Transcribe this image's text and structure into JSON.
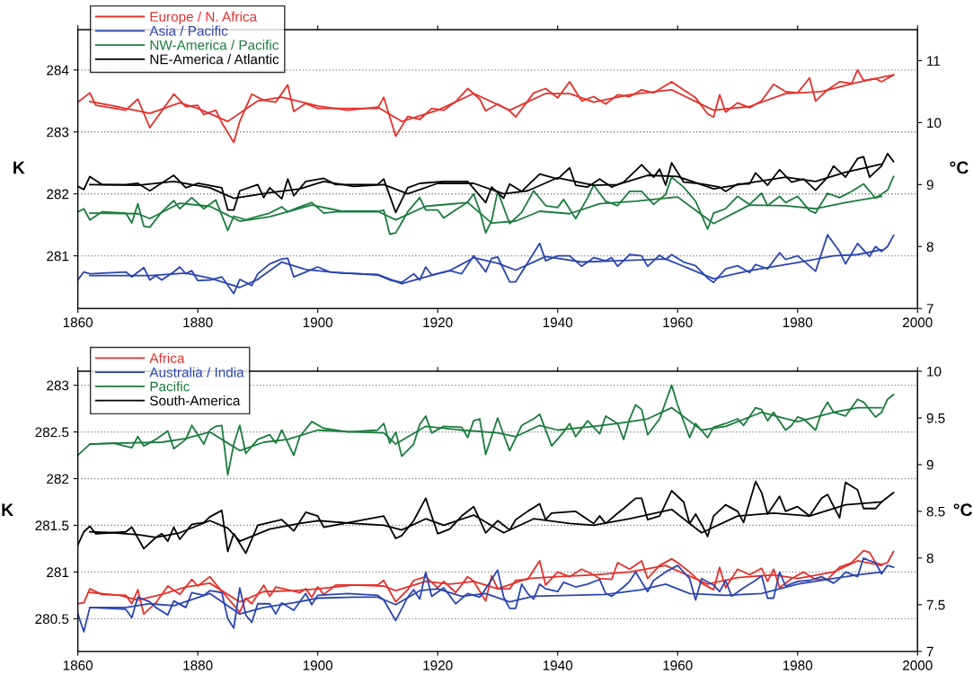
{
  "chart_data": [
    {
      "type": "line",
      "ylabel": "K",
      "y2label": "°C",
      "xlim": [
        1860,
        2000
      ],
      "xticks": [
        1860,
        1880,
        1900,
        1920,
        1940,
        1960,
        1980,
        2000
      ],
      "ylim": [
        280.15,
        284.65
      ],
      "yticks": [
        281,
        282,
        283,
        284
      ],
      "y2lim": [
        7,
        11.5
      ],
      "y2ticks": [
        7,
        8,
        9,
        10,
        11
      ],
      "grid": "y",
      "legend": "top left",
      "line_style": "solid",
      "series": [
        {
          "name": "Europe / N. Africa",
          "color": "#e3312b",
          "x": [
            1860,
            1862,
            1863,
            1868,
            1870,
            1872,
            1876,
            1878,
            1880,
            1881,
            1883,
            1884,
            1886,
            1887,
            1889,
            1891,
            1893,
            1895,
            1896,
            1898,
            1900,
            1910,
            1911,
            1913,
            1915,
            1917,
            1919,
            1921,
            1923,
            1925,
            1927,
            1928,
            1930,
            1932,
            1933,
            1936,
            1938,
            1940,
            1942,
            1944,
            1946,
            1948,
            1950,
            1952,
            1954,
            1956,
            1959,
            1961,
            1963,
            1965,
            1966,
            1967,
            1968,
            1970,
            1972,
            1974,
            1976,
            1978,
            1980,
            1982,
            1983,
            1985,
            1987,
            1989,
            1990,
            1991,
            1993,
            1994,
            1996
          ],
          "values": [
            283.48,
            283.63,
            283.43,
            283.35,
            283.53,
            283.07,
            283.61,
            283.41,
            283.43,
            283.28,
            283.35,
            283.15,
            282.83,
            283.17,
            283.61,
            283.51,
            283.48,
            283.76,
            283.33,
            283.46,
            283.38,
            283.38,
            283.56,
            282.93,
            283.25,
            283.2,
            283.38,
            283.35,
            283.49,
            283.7,
            283.53,
            283.34,
            283.45,
            283.34,
            283.24,
            283.63,
            283.7,
            283.55,
            283.81,
            283.5,
            283.57,
            283.45,
            283.6,
            283.57,
            283.68,
            283.63,
            283.81,
            283.68,
            283.55,
            283.29,
            283.24,
            283.6,
            283.32,
            283.47,
            283.39,
            283.5,
            283.77,
            283.65,
            283.63,
            283.87,
            283.5,
            283.68,
            283.81,
            283.78,
            284.0,
            283.83,
            283.86,
            283.81,
            283.92
          ]
        },
        {
          "color": "#e3312b",
          "x": [
            1862,
            1866,
            1872,
            1877,
            1880,
            1885,
            1890,
            1894,
            1900,
            1905,
            1910,
            1914,
            1920,
            1926,
            1932,
            1938,
            1942,
            1946,
            1952,
            1959,
            1966,
            1972,
            1978,
            1984,
            1990,
            1996
          ],
          "values": [
            283.49,
            283.42,
            283.3,
            283.47,
            283.38,
            283.17,
            283.5,
            283.56,
            283.42,
            283.35,
            283.4,
            283.17,
            283.35,
            283.62,
            283.35,
            283.62,
            283.62,
            283.48,
            283.6,
            283.68,
            283.35,
            283.41,
            283.62,
            283.65,
            283.8,
            283.92
          ]
        },
        {
          "name": "Asia / Pacific",
          "color": "#2c45b0",
          "x": [
            1860,
            1861,
            1862,
            1868,
            1869,
            1871,
            1872,
            1873,
            1874,
            1876,
            1877,
            1878,
            1879,
            1880,
            1882,
            1884,
            1886,
            1887,
            1889,
            1890,
            1892,
            1894,
            1895,
            1896,
            1898,
            1900,
            1902,
            1910,
            1912,
            1914,
            1916,
            1917,
            1918,
            1919,
            1922,
            1924,
            1926,
            1928,
            1929,
            1930,
            1932,
            1933,
            1935,
            1937,
            1938,
            1940,
            1942,
            1944,
            1946,
            1948,
            1949,
            1950,
            1952,
            1954,
            1955,
            1957,
            1958,
            1959,
            1961,
            1963,
            1965,
            1966,
            1968,
            1970,
            1972,
            1973,
            1975,
            1977,
            1978,
            1980,
            1981,
            1983,
            1985,
            1987,
            1988,
            1990,
            1992,
            1993,
            1994,
            1995,
            1996
          ],
          "values": [
            280.61,
            280.74,
            280.71,
            280.74,
            280.66,
            280.81,
            280.61,
            280.68,
            280.61,
            280.74,
            280.82,
            280.71,
            280.76,
            280.6,
            280.61,
            280.66,
            280.39,
            280.62,
            280.52,
            280.71,
            280.87,
            280.95,
            280.96,
            280.66,
            280.74,
            280.82,
            280.74,
            280.69,
            280.61,
            280.57,
            280.71,
            280.61,
            280.82,
            280.69,
            280.76,
            280.71,
            281.0,
            280.74,
            280.96,
            280.98,
            280.58,
            280.58,
            280.89,
            281.2,
            280.92,
            281.0,
            281.0,
            280.83,
            280.97,
            280.92,
            280.97,
            280.83,
            281.02,
            281.0,
            280.83,
            281.01,
            280.94,
            281.02,
            280.9,
            280.84,
            280.64,
            280.57,
            280.79,
            280.84,
            280.73,
            280.86,
            280.79,
            281.05,
            280.94,
            281.0,
            280.92,
            280.75,
            281.34,
            281.07,
            280.87,
            281.2,
            280.99,
            281.15,
            281.07,
            281.15,
            281.33
          ]
        },
        {
          "color": "#2c45b0",
          "x": [
            1862,
            1872,
            1878,
            1882,
            1887,
            1890,
            1894,
            1898,
            1904,
            1910,
            1914,
            1918,
            1922,
            1926,
            1930,
            1933,
            1938,
            1944,
            1950,
            1958,
            1966,
            1972,
            1980,
            1986,
            1990,
            1994
          ],
          "values": [
            280.68,
            280.68,
            280.72,
            280.64,
            280.49,
            280.62,
            280.9,
            280.78,
            280.72,
            280.7,
            280.55,
            280.66,
            280.76,
            280.97,
            280.88,
            280.77,
            280.99,
            280.9,
            280.92,
            280.95,
            280.63,
            280.76,
            280.89,
            281.0,
            281.02,
            281.1
          ]
        },
        {
          "name": "NW-America / Pacific",
          "color": "#1b7c3d",
          "x": [
            1860,
            1861,
            1862,
            1864,
            1868,
            1869,
            1870,
            1871,
            1872,
            1874,
            1876,
            1877,
            1879,
            1881,
            1883,
            1885,
            1886,
            1888,
            1890,
            1892,
            1894,
            1895,
            1897,
            1899,
            1901,
            1903,
            1910,
            1911,
            1912,
            1913,
            1915,
            1917,
            1918,
            1920,
            1921,
            1923,
            1925,
            1926,
            1927,
            1928,
            1929,
            1930,
            1932,
            1934,
            1936,
            1938,
            1940,
            1941,
            1943,
            1945,
            1946,
            1948,
            1950,
            1952,
            1954,
            1956,
            1958,
            1959,
            1961,
            1963,
            1965,
            1966,
            1968,
            1970,
            1972,
            1974,
            1975,
            1977,
            1978,
            1980,
            1982,
            1983,
            1985,
            1987,
            1989,
            1991,
            1993,
            1995,
            1996
          ],
          "values": [
            281.71,
            281.76,
            281.58,
            281.71,
            281.69,
            281.53,
            281.84,
            281.48,
            281.46,
            281.71,
            281.89,
            281.76,
            281.94,
            281.76,
            281.9,
            281.41,
            281.64,
            281.58,
            281.64,
            281.69,
            281.79,
            281.71,
            281.79,
            281.86,
            281.69,
            281.71,
            281.71,
            281.74,
            281.35,
            281.37,
            281.71,
            281.94,
            281.74,
            281.74,
            281.61,
            281.74,
            281.87,
            282.0,
            281.73,
            281.37,
            281.57,
            282.04,
            281.52,
            281.7,
            282.05,
            281.81,
            281.78,
            281.91,
            281.6,
            281.94,
            282.14,
            281.88,
            281.81,
            282.04,
            282.04,
            281.83,
            281.99,
            282.27,
            282.11,
            281.88,
            281.43,
            281.69,
            281.76,
            281.96,
            281.83,
            282.01,
            281.81,
            281.96,
            281.86,
            281.96,
            281.73,
            281.69,
            282.01,
            281.94,
            282.04,
            282.16,
            281.93,
            282.06,
            282.28
          ]
        },
        {
          "color": "#1b7c3d",
          "x": [
            1862,
            1870,
            1872,
            1877,
            1882,
            1887,
            1892,
            1899,
            1904,
            1910,
            1913,
            1918,
            1925,
            1929,
            1933,
            1937,
            1942,
            1947,
            1953,
            1960,
            1966,
            1972,
            1978,
            1983,
            1988,
            1994
          ],
          "values": [
            281.69,
            281.68,
            281.6,
            281.85,
            281.8,
            281.56,
            281.63,
            281.82,
            281.72,
            281.72,
            281.58,
            281.8,
            281.86,
            281.53,
            281.56,
            281.72,
            281.68,
            281.84,
            281.88,
            281.95,
            281.52,
            281.82,
            281.81,
            281.76,
            281.86,
            281.96
          ]
        },
        {
          "name": "NE-America / Atlantic",
          "color": "#000000",
          "x": [
            1860,
            1861,
            1862,
            1864,
            1868,
            1870,
            1872,
            1876,
            1878,
            1880,
            1884,
            1885,
            1886,
            1887,
            1890,
            1891,
            1892,
            1894,
            1895,
            1896,
            1898,
            1901,
            1903,
            1910,
            1911,
            1913,
            1915,
            1917,
            1921,
            1925,
            1928,
            1929,
            1931,
            1932,
            1934,
            1937,
            1940,
            1942,
            1943,
            1945,
            1947,
            1949,
            1951,
            1954,
            1956,
            1957,
            1958,
            1959,
            1961,
            1964,
            1967,
            1968,
            1970,
            1972,
            1973,
            1975,
            1977,
            1979,
            1981,
            1983,
            1985,
            1986,
            1988,
            1990,
            1991,
            1992,
            1994,
            1995,
            1996
          ],
          "values": [
            282.12,
            282.07,
            282.28,
            282.15,
            282.15,
            282.17,
            282.05,
            282.3,
            282.1,
            282.17,
            282.1,
            281.74,
            281.74,
            282.05,
            282.15,
            281.94,
            282.1,
            281.92,
            282.24,
            281.97,
            282.2,
            282.25,
            282.15,
            282.15,
            282.24,
            281.7,
            282.1,
            282.17,
            282.2,
            282.2,
            281.86,
            282.11,
            281.93,
            282.16,
            282.04,
            282.32,
            282.24,
            282.42,
            282.14,
            282.11,
            282.24,
            282.11,
            282.19,
            282.47,
            282.27,
            282.4,
            282.14,
            282.5,
            282.19,
            282.16,
            282.11,
            282.04,
            282.16,
            282.16,
            282.34,
            282.14,
            282.39,
            282.19,
            282.24,
            282.06,
            282.27,
            282.45,
            282.27,
            282.57,
            282.6,
            282.27,
            282.45,
            282.65,
            282.52
          ]
        },
        {
          "color": "#000000",
          "x": [
            1862,
            1870,
            1876,
            1882,
            1886,
            1892,
            1897,
            1901,
            1906,
            1911,
            1915,
            1920,
            1926,
            1931,
            1935,
            1940,
            1946,
            1950,
            1955,
            1960,
            1966,
            1972,
            1978,
            1983,
            1988,
            1994
          ],
          "values": [
            282.15,
            282.14,
            282.2,
            282.1,
            281.93,
            282.02,
            282.08,
            282.2,
            282.12,
            282.15,
            282.0,
            282.17,
            282.17,
            282.0,
            282.05,
            282.26,
            282.14,
            282.15,
            282.3,
            282.28,
            282.08,
            282.18,
            282.27,
            282.2,
            282.35,
            282.48
          ]
        }
      ]
    },
    {
      "type": "line",
      "ylabel": "K",
      "y2label": "°C",
      "xlim": [
        1860,
        2000
      ],
      "xticks": [
        1860,
        1880,
        1900,
        1920,
        1940,
        1960,
        1980,
        2000
      ],
      "ylim": [
        280.15,
        283.15
      ],
      "yticks": [
        280.5,
        281,
        281.5,
        282,
        282.5,
        283
      ],
      "y2lim": [
        7,
        10
      ],
      "y2ticks": [
        7,
        7.5,
        8,
        8.5,
        9,
        9.5,
        10
      ],
      "grid": "y",
      "legend": "top left",
      "line_style": "solid",
      "series": [
        {
          "name": "Africa",
          "color": "#e3312b",
          "x": [
            1860,
            1861,
            1862,
            1864,
            1868,
            1869,
            1870,
            1871,
            1873,
            1875,
            1877,
            1879,
            1880,
            1882,
            1883,
            1885,
            1887,
            1888,
            1889,
            1891,
            1892,
            1893,
            1895,
            1897,
            1898,
            1899,
            1900,
            1901,
            1903,
            1910,
            1911,
            1913,
            1915,
            1916,
            1918,
            1920,
            1921,
            1923,
            1925,
            1926,
            1928,
            1929,
            1930,
            1932,
            1933,
            1935,
            1937,
            1938,
            1940,
            1942,
            1944,
            1946,
            1947,
            1949,
            1950,
            1952,
            1954,
            1955,
            1957,
            1959,
            1960,
            1962,
            1964,
            1966,
            1967,
            1968,
            1970,
            1972,
            1974,
            1975,
            1976,
            1977,
            1979,
            1981,
            1983,
            1985,
            1987,
            1989,
            1991,
            1992,
            1993,
            1994,
            1995,
            1996
          ],
          "values": [
            280.66,
            280.67,
            280.82,
            280.76,
            280.75,
            280.66,
            280.81,
            280.55,
            280.67,
            280.85,
            280.76,
            280.92,
            280.85,
            280.95,
            280.87,
            280.72,
            280.57,
            280.72,
            280.66,
            280.86,
            280.74,
            280.84,
            280.81,
            280.78,
            280.82,
            280.73,
            280.84,
            280.76,
            280.86,
            280.86,
            280.91,
            280.68,
            280.81,
            280.91,
            280.95,
            280.83,
            280.9,
            280.78,
            280.95,
            280.9,
            280.69,
            280.96,
            280.82,
            280.82,
            280.91,
            280.92,
            281.12,
            280.86,
            281.0,
            280.95,
            281.03,
            280.97,
            280.93,
            280.92,
            281.1,
            281.03,
            281.12,
            280.93,
            281.07,
            281.14,
            281.1,
            281.0,
            280.88,
            280.81,
            281.05,
            280.83,
            281.03,
            280.97,
            281.04,
            280.9,
            281.03,
            280.83,
            280.93,
            281.0,
            280.92,
            280.92,
            281.05,
            281.1,
            281.23,
            281.21,
            281.1,
            281.08,
            281.1,
            281.22
          ]
        },
        {
          "color": "#e3312b",
          "x": [
            1862,
            1867,
            1870,
            1874,
            1878,
            1882,
            1887,
            1891,
            1896,
            1900,
            1906,
            1911,
            1913,
            1918,
            1922,
            1926,
            1930,
            1935,
            1940,
            1946,
            1952,
            1958,
            1965,
            1970,
            1976,
            1980,
            1986,
            1990,
            1994
          ],
          "values": [
            280.78,
            280.75,
            280.7,
            280.76,
            280.84,
            280.88,
            280.68,
            280.79,
            280.8,
            280.82,
            280.86,
            280.85,
            280.8,
            280.9,
            280.87,
            280.9,
            280.82,
            280.93,
            280.95,
            280.97,
            281.0,
            281.07,
            280.87,
            280.94,
            280.97,
            280.93,
            281.0,
            281.12,
            281.07
          ]
        },
        {
          "name": "Australia / India",
          "color": "#2c45b0",
          "x": [
            1860,
            1861,
            1862,
            1868,
            1869,
            1870,
            1872,
            1873,
            1875,
            1876,
            1878,
            1879,
            1881,
            1882,
            1884,
            1885,
            1886,
            1887,
            1888,
            1889,
            1890,
            1892,
            1893,
            1894,
            1896,
            1898,
            1899,
            1900,
            1905,
            1910,
            1911,
            1913,
            1915,
            1916,
            1917,
            1918,
            1919,
            1921,
            1923,
            1925,
            1927,
            1928,
            1930,
            1931,
            1932,
            1933,
            1934,
            1935,
            1936,
            1937,
            1938,
            1940,
            1941,
            1943,
            1945,
            1947,
            1948,
            1949,
            1951,
            1952,
            1953,
            1955,
            1956,
            1958,
            1960,
            1962,
            1963,
            1964,
            1966,
            1967,
            1968,
            1969,
            1971,
            1973,
            1974,
            1975,
            1976,
            1977,
            1978,
            1980,
            1982,
            1984,
            1986,
            1987,
            1988,
            1990,
            1991,
            1992,
            1993,
            1994,
            1995,
            1996
          ],
          "values": [
            280.55,
            280.36,
            280.62,
            280.6,
            280.51,
            280.73,
            280.68,
            280.62,
            280.54,
            280.69,
            280.62,
            280.78,
            280.75,
            280.8,
            280.78,
            280.5,
            280.4,
            280.83,
            280.54,
            280.46,
            280.66,
            280.66,
            280.55,
            280.67,
            280.59,
            280.77,
            280.65,
            280.75,
            280.77,
            280.75,
            280.7,
            280.48,
            280.73,
            280.81,
            280.71,
            281.0,
            280.74,
            280.83,
            280.66,
            280.77,
            280.73,
            280.82,
            281.02,
            280.73,
            280.61,
            280.61,
            280.87,
            280.77,
            280.71,
            280.87,
            280.82,
            280.79,
            280.89,
            280.84,
            280.87,
            280.92,
            280.77,
            280.74,
            280.84,
            280.9,
            281.0,
            280.79,
            280.91,
            281.0,
            281.07,
            280.93,
            280.7,
            280.93,
            280.86,
            280.79,
            280.91,
            280.74,
            280.83,
            280.91,
            280.96,
            280.72,
            280.72,
            281.0,
            280.85,
            280.9,
            280.91,
            280.95,
            280.88,
            280.93,
            281.0,
            280.95,
            281.15,
            281.12,
            281.1,
            280.98,
            281.07,
            281.05
          ]
        },
        {
          "color": "#2c45b0",
          "x": [
            1862,
            1868,
            1872,
            1876,
            1882,
            1887,
            1891,
            1896,
            1900,
            1906,
            1910,
            1913,
            1917,
            1920,
            1924,
            1928,
            1932,
            1936,
            1942,
            1948,
            1954,
            1958,
            1962,
            1968,
            1974,
            1980,
            1986,
            1990,
            1994
          ],
          "values": [
            280.62,
            280.62,
            280.66,
            280.64,
            280.77,
            280.55,
            280.62,
            280.67,
            280.72,
            280.73,
            280.73,
            280.65,
            280.8,
            280.82,
            280.74,
            280.77,
            280.68,
            280.74,
            280.75,
            280.76,
            280.81,
            280.87,
            280.77,
            280.75,
            280.77,
            280.87,
            280.93,
            280.97,
            281.0
          ]
        },
        {
          "name": "Pacific",
          "color": "#1b7c3d",
          "x": [
            1860,
            1862,
            1866,
            1869,
            1870,
            1871,
            1873,
            1875,
            1876,
            1878,
            1879,
            1881,
            1882,
            1883,
            1884,
            1885,
            1886,
            1887,
            1888,
            1890,
            1892,
            1893,
            1894,
            1896,
            1897,
            1899,
            1901,
            1905,
            1910,
            1911,
            1912,
            1913,
            1914,
            1916,
            1917,
            1918,
            1919,
            1921,
            1924,
            1925,
            1926,
            1927,
            1928,
            1930,
            1931,
            1932,
            1934,
            1936,
            1937,
            1939,
            1941,
            1942,
            1943,
            1945,
            1947,
            1948,
            1950,
            1951,
            1952,
            1953,
            1954,
            1955,
            1957,
            1959,
            1960,
            1962,
            1963,
            1965,
            1966,
            1968,
            1970,
            1971,
            1973,
            1974,
            1975,
            1976,
            1978,
            1979,
            1980,
            1981,
            1983,
            1984,
            1985,
            1986,
            1988,
            1990,
            1991,
            1993,
            1994,
            1995,
            1996
          ],
          "values": [
            282.25,
            282.37,
            282.38,
            282.33,
            282.45,
            282.35,
            282.42,
            282.51,
            282.32,
            282.42,
            282.57,
            282.37,
            282.52,
            282.56,
            282.57,
            282.04,
            282.37,
            282.57,
            282.27,
            282.42,
            282.47,
            282.38,
            282.52,
            282.25,
            282.45,
            282.61,
            282.54,
            282.5,
            282.52,
            282.59,
            282.38,
            282.5,
            282.24,
            282.37,
            282.58,
            282.67,
            282.49,
            282.56,
            282.55,
            282.44,
            282.62,
            282.64,
            282.26,
            282.65,
            282.47,
            282.3,
            282.57,
            282.64,
            282.69,
            282.35,
            282.5,
            282.59,
            282.45,
            282.62,
            282.48,
            282.67,
            282.59,
            282.42,
            282.64,
            282.79,
            282.74,
            282.47,
            282.64,
            283.0,
            282.79,
            282.44,
            282.59,
            282.44,
            282.55,
            282.59,
            282.64,
            282.57,
            282.76,
            282.74,
            282.62,
            282.71,
            282.52,
            282.57,
            282.66,
            282.64,
            282.52,
            282.71,
            282.82,
            282.71,
            282.67,
            282.85,
            282.82,
            282.66,
            282.71,
            282.85,
            282.9
          ]
        },
        {
          "color": "#1b7c3d",
          "x": [
            1862,
            1866,
            1874,
            1878,
            1882,
            1887,
            1891,
            1895,
            1900,
            1906,
            1911,
            1913,
            1918,
            1924,
            1930,
            1933,
            1937,
            1940,
            1946,
            1950,
            1955,
            1959,
            1964,
            1968,
            1974,
            1980,
            1986,
            1990,
            1994
          ],
          "values": [
            282.37,
            282.38,
            282.39,
            282.43,
            282.5,
            282.3,
            282.39,
            282.42,
            282.52,
            282.5,
            282.49,
            282.37,
            282.56,
            282.52,
            282.49,
            282.45,
            282.57,
            282.52,
            282.56,
            282.59,
            282.64,
            282.76,
            282.52,
            282.56,
            282.71,
            282.61,
            282.71,
            282.76,
            282.76
          ]
        },
        {
          "name": "South-America",
          "color": "#000000",
          "x": [
            1860,
            1861,
            1862,
            1863,
            1868,
            1869,
            1871,
            1873,
            1874,
            1875,
            1876,
            1877,
            1879,
            1881,
            1882,
            1884,
            1885,
            1886,
            1888,
            1890,
            1894,
            1896,
            1898,
            1900,
            1901,
            1911,
            1913,
            1914,
            1916,
            1918,
            1920,
            1922,
            1924,
            1926,
            1928,
            1930,
            1932,
            1933,
            1935,
            1937,
            1938,
            1939,
            1943,
            1946,
            1947,
            1948,
            1950,
            1951,
            1953,
            1954,
            1955,
            1957,
            1959,
            1961,
            1962,
            1963,
            1964,
            1965,
            1966,
            1968,
            1970,
            1971,
            1973,
            1974,
            1975,
            1977,
            1978,
            1980,
            1982,
            1984,
            1985,
            1987,
            1988,
            1990,
            1991,
            1993,
            1994,
            1996
          ],
          "values": [
            281.29,
            281.43,
            281.49,
            281.41,
            281.43,
            281.48,
            281.25,
            281.37,
            281.41,
            281.33,
            281.48,
            281.35,
            281.51,
            281.53,
            281.59,
            281.66,
            281.22,
            281.41,
            281.2,
            281.5,
            281.56,
            281.44,
            281.64,
            281.6,
            281.48,
            281.6,
            281.36,
            281.39,
            281.55,
            281.79,
            281.41,
            281.46,
            281.6,
            281.7,
            281.42,
            281.55,
            281.45,
            281.56,
            281.65,
            281.73,
            281.56,
            281.63,
            281.65,
            281.52,
            281.6,
            281.52,
            281.63,
            281.68,
            281.79,
            281.79,
            281.56,
            281.6,
            281.87,
            281.75,
            281.52,
            281.62,
            281.51,
            281.38,
            281.6,
            281.72,
            281.65,
            281.53,
            281.97,
            281.85,
            281.62,
            281.81,
            281.65,
            281.7,
            281.6,
            281.79,
            281.83,
            281.58,
            281.96,
            281.88,
            281.68,
            281.68,
            281.75,
            281.85
          ]
        },
        {
          "color": "#000000",
          "x": [
            1862,
            1866,
            1870,
            1873,
            1877,
            1882,
            1885,
            1887,
            1892,
            1897,
            1900,
            1906,
            1911,
            1914,
            1918,
            1921,
            1926,
            1931,
            1936,
            1942,
            1946,
            1952,
            1959,
            1964,
            1970,
            1976,
            1982,
            1988,
            1994
          ],
          "values": [
            281.43,
            281.42,
            281.4,
            281.37,
            281.42,
            281.55,
            281.47,
            281.33,
            281.46,
            281.52,
            281.55,
            281.52,
            281.5,
            281.45,
            281.57,
            281.5,
            281.61,
            281.42,
            281.57,
            281.52,
            281.5,
            281.57,
            281.67,
            281.42,
            281.6,
            281.63,
            281.6,
            281.72,
            281.75
          ]
        }
      ]
    }
  ]
}
